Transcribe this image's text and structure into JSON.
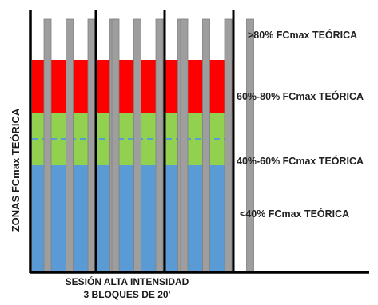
{
  "chart_data": {
    "type": "bar",
    "ylabel": "ZONAS FCmax TEÓRICA",
    "xlabel_lines": [
      "SESIÓN ALTA INTENSIDAD",
      "3 BLOQUES DE 20'"
    ],
    "zones": [
      {
        "label": "<40% FCmax TEÓRICA",
        "from": 0,
        "to": 40,
        "color": "#5b9bd5"
      },
      {
        "label": "40%-60% FCmax TEÓRICA",
        "from": 40,
        "to": 60,
        "color": "#92d050"
      },
      {
        "label": "60%-80% FCmax TEÓRICA",
        "from": 60,
        "to": 80,
        "color": "#ff0000"
      },
      {
        "label": ">80% FCmax TEÓRICA",
        "from": 80,
        "to": 100,
        "color": "#ffffff"
      }
    ],
    "zones_extent": 80,
    "dashed_line_value": 50,
    "blocks": 3,
    "bars_per_block": 4,
    "bar_color": "#9e9e9e",
    "divider_color": "#000000",
    "dashed_color": "#5b9bd5"
  }
}
